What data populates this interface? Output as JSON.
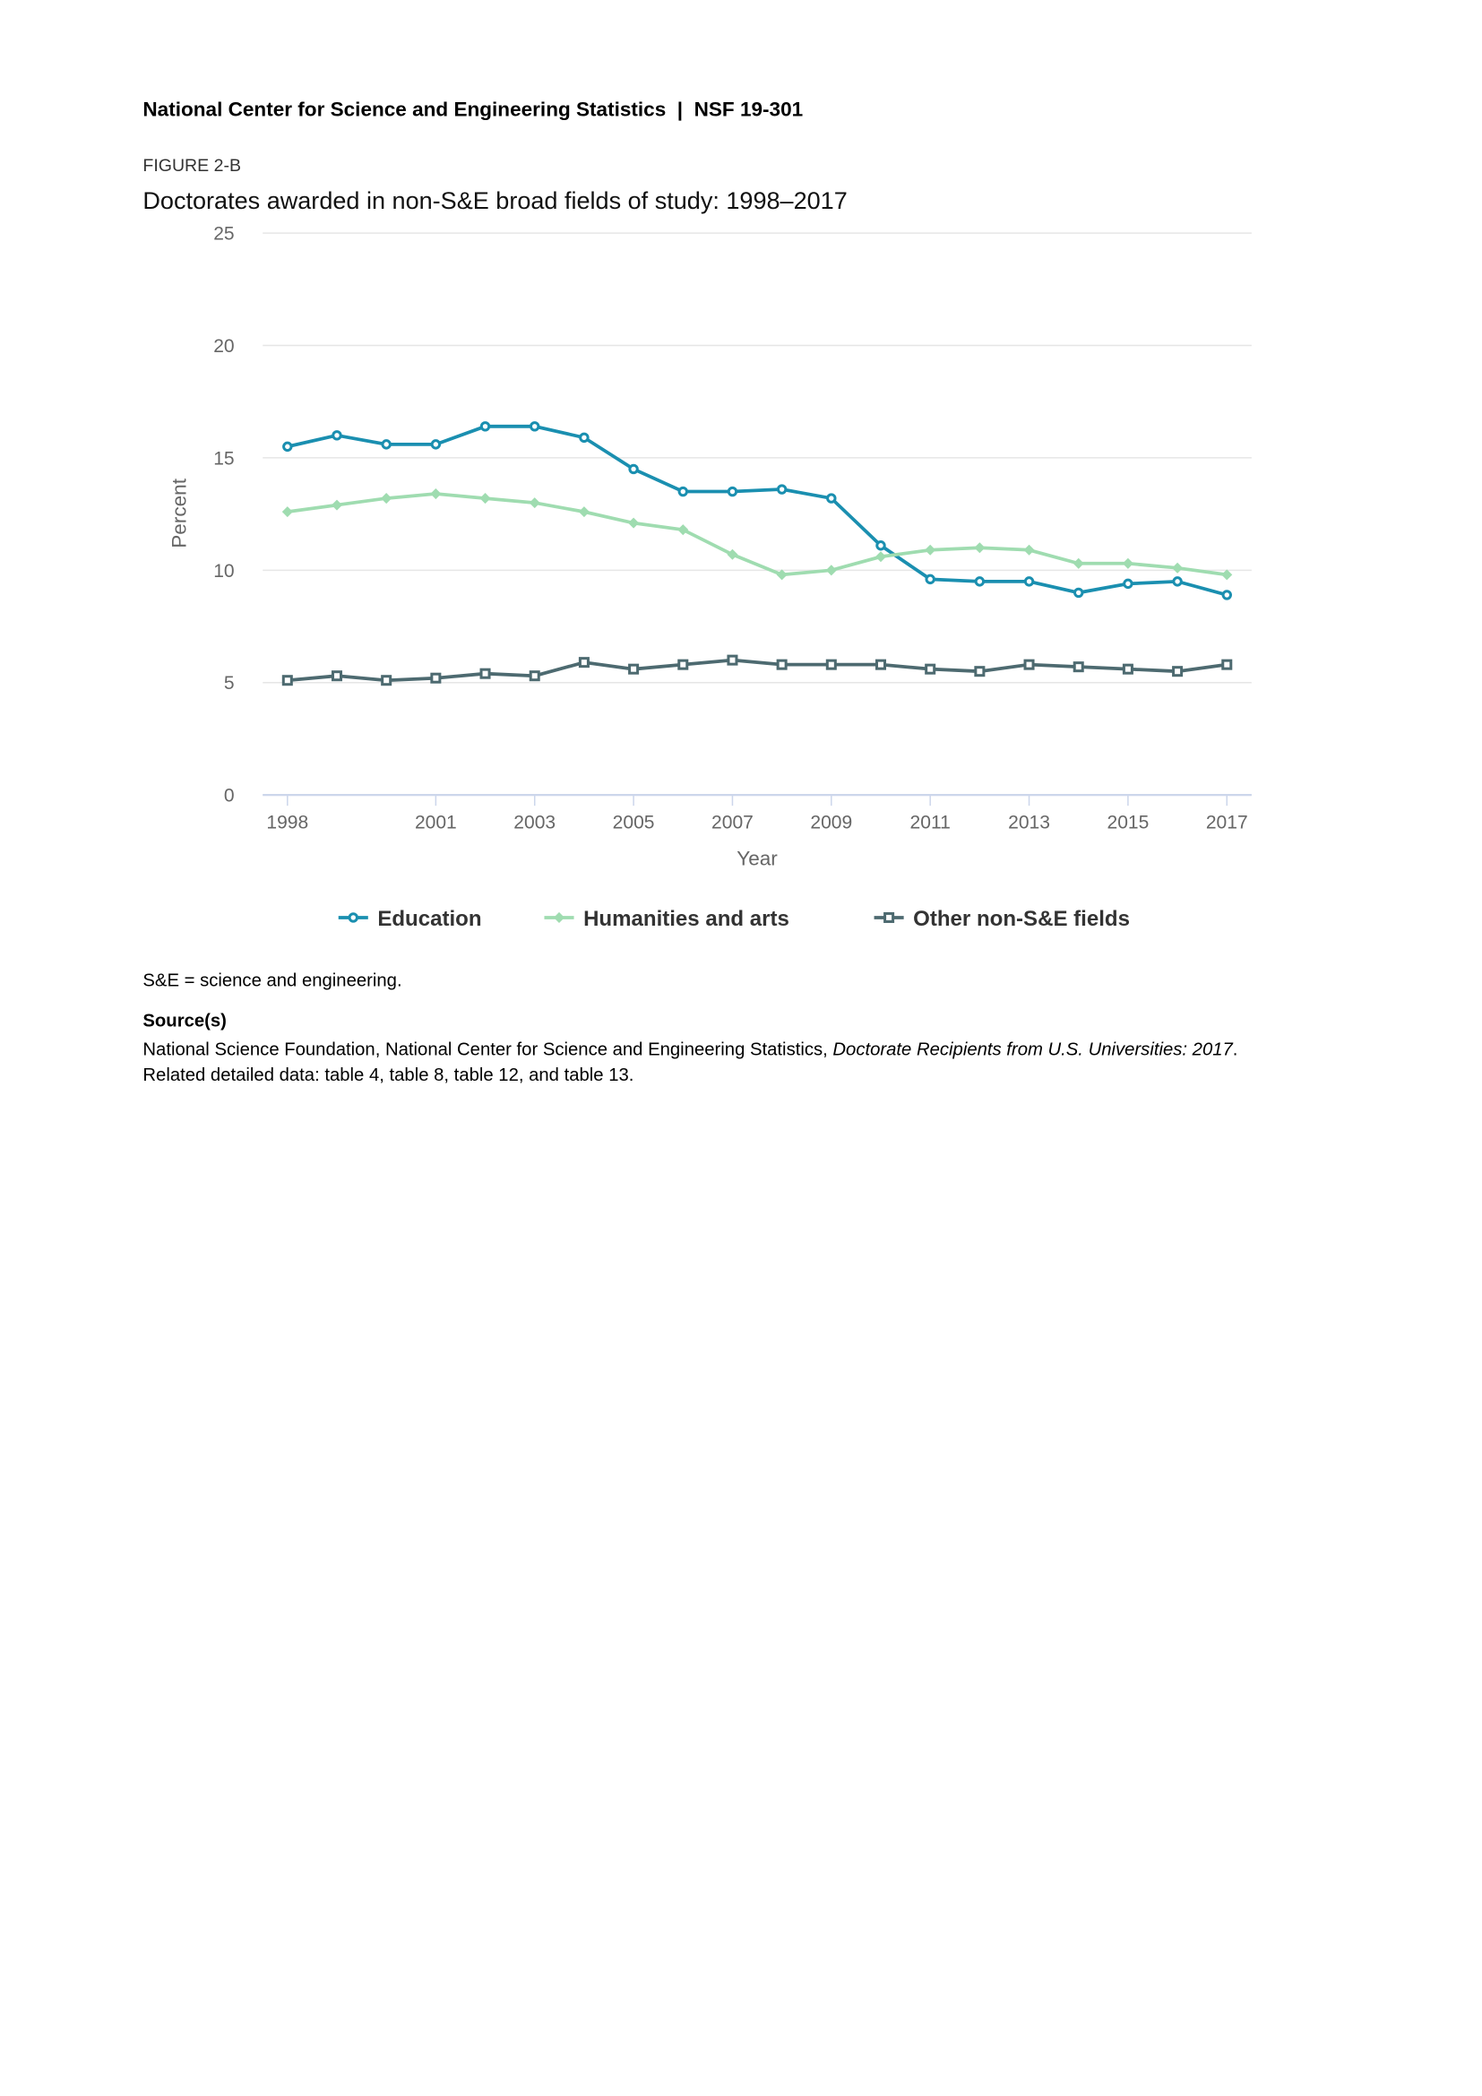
{
  "header": "National Center for Science and Engineering Statistics  |  NSF 19-301",
  "figure_label": "FIGURE 2-B",
  "chart_data": {
    "type": "line",
    "title": "Doctorates awarded in non-S&E broad fields of study: 1998–2017",
    "x_label": "Year",
    "y_label": "Percent",
    "x": [
      1998,
      1999,
      2000,
      2001,
      2002,
      2003,
      2004,
      2005,
      2006,
      2007,
      2008,
      2009,
      2010,
      2011,
      2012,
      2013,
      2014,
      2015,
      2016,
      2017
    ],
    "xlim": [
      1997.5,
      2017.5
    ],
    "xticks": [
      1998,
      2001,
      2003,
      2005,
      2007,
      2009,
      2011,
      2013,
      2015,
      2017
    ],
    "ylim": [
      0,
      25
    ],
    "yticks": [
      0,
      5,
      10,
      15,
      20,
      25
    ],
    "grid": true,
    "series": [
      {
        "name": "Education",
        "color": "#1a8fb0",
        "marker": "circle",
        "values": [
          15.5,
          16.0,
          15.6,
          15.6,
          16.4,
          16.4,
          15.9,
          14.5,
          13.5,
          13.5,
          13.6,
          13.2,
          11.1,
          9.6,
          9.5,
          9.5,
          9.0,
          9.4,
          9.5,
          8.9
        ]
      },
      {
        "name": "Humanities and arts",
        "color": "#9fdcb0",
        "marker": "diamond",
        "values": [
          12.6,
          12.9,
          13.2,
          13.4,
          13.2,
          13.0,
          12.6,
          12.1,
          11.8,
          10.7,
          9.8,
          10.0,
          10.6,
          10.9,
          11.0,
          10.9,
          10.3,
          10.3,
          10.1,
          9.8
        ]
      },
      {
        "name": "Other non-S&E fields",
        "color": "#4d6a70",
        "marker": "square",
        "values": [
          5.1,
          5.3,
          5.1,
          5.2,
          5.4,
          5.3,
          5.9,
          5.6,
          5.8,
          6.0,
          5.8,
          5.8,
          5.8,
          5.6,
          5.5,
          5.8,
          5.7,
          5.6,
          5.5,
          5.8
        ]
      }
    ]
  },
  "note": "S&E = science and engineering.",
  "source_heading": "Source(s)",
  "source_text": "National Science Foundation, National Center for Science and Engineering Statistics, ",
  "source_title": "Doctorate Recipients from U.S. Universities: 2017",
  "source_end": ".",
  "related": "Related detailed data: table 4, table 8, table 12, and table 13."
}
